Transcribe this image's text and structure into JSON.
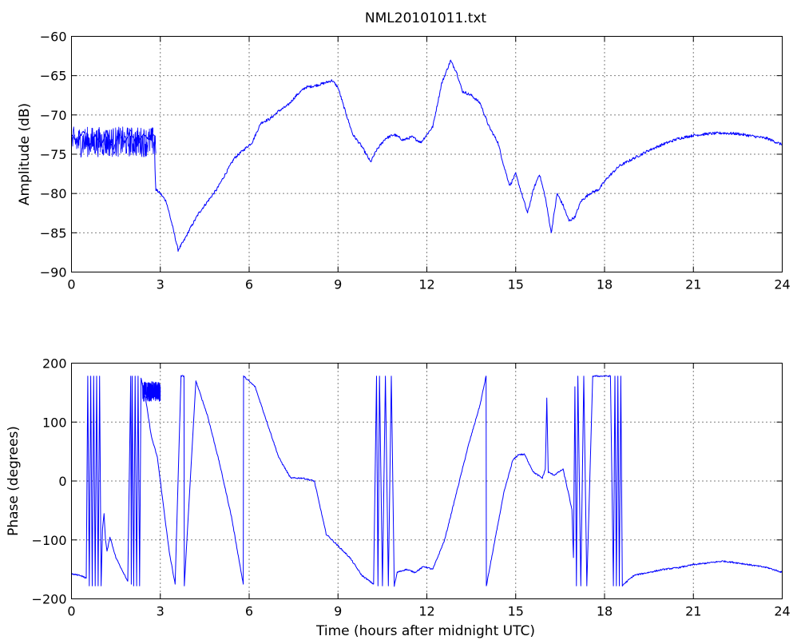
{
  "chart_data": [
    {
      "type": "line",
      "title": "NML20101011.txt",
      "xlabel": "",
      "ylabel": "Amplitude (dB)",
      "xlim": [
        0,
        24
      ],
      "ylim": [
        -90,
        -60
      ],
      "xticks": [
        0,
        3,
        6,
        9,
        12,
        15,
        18,
        21,
        24
      ],
      "yticks": [
        -60,
        -65,
        -70,
        -75,
        -80,
        -85,
        -90
      ],
      "xtick_labels": [
        "0",
        "3",
        "6",
        "9",
        "12",
        "15",
        "18",
        "21",
        "24"
      ],
      "ytick_labels": [
        "−60",
        "−65",
        "−70",
        "−75",
        "−80",
        "−85",
        "−90"
      ],
      "grid": true,
      "series_color": "#0000ff",
      "series": [
        {
          "x": [
            0,
            0.2,
            0.4,
            0.6,
            0.8,
            1.0,
            1.2,
            1.4,
            1.6,
            1.8,
            2.0,
            2.2,
            2.4,
            2.6,
            2.8,
            2.82,
            2.85,
            3.0,
            3.2,
            3.4,
            3.6,
            3.8,
            4.0,
            4.3,
            4.6,
            4.9,
            5.2,
            5.5,
            5.8,
            6.1,
            6.4,
            6.7,
            7.0,
            7.3,
            7.6,
            7.9,
            8.2,
            8.5,
            8.8,
            9.0,
            9.2,
            9.5,
            9.8,
            10.1,
            10.3,
            10.6,
            10.9,
            11.2,
            11.5,
            11.8,
            12.0,
            12.2,
            12.5,
            12.8,
            13.0,
            13.2,
            13.5,
            13.8,
            14.1,
            14.4,
            14.6,
            14.8,
            15.0,
            15.2,
            15.4,
            15.6,
            15.8,
            16.0,
            16.2,
            16.4,
            16.6,
            16.8,
            17.0,
            17.2,
            17.5,
            17.8,
            18.1,
            18.5,
            19.0,
            19.5,
            20.0,
            20.5,
            21.0,
            21.5,
            22.0,
            22.5,
            23.0,
            23.5,
            24.0
          ],
          "y": [
            -72.5,
            -73.5,
            -72,
            -74,
            -72.5,
            -73.8,
            -72,
            -74.5,
            -72.5,
            -73.5,
            -72,
            -74,
            -72.5,
            -73,
            -72.5,
            -77,
            -79.5,
            -80,
            -81,
            -84,
            -87.2,
            -86,
            -84.5,
            -82.5,
            -81,
            -79.5,
            -77.5,
            -75.5,
            -74.5,
            -73.5,
            -71,
            -70.5,
            -69.5,
            -68.8,
            -67.5,
            -66.5,
            -66.3,
            -66,
            -65.6,
            -66.5,
            -69,
            -72.5,
            -74,
            -76,
            -74.5,
            -73,
            -72.5,
            -73.2,
            -72.8,
            -73.5,
            -72.5,
            -71.5,
            -66,
            -63.1,
            -64.5,
            -67,
            -67.5,
            -68.5,
            -71.5,
            -73.5,
            -76.5,
            -79,
            -77.5,
            -80,
            -82.5,
            -79.5,
            -77.5,
            -80.5,
            -85,
            -80,
            -81.5,
            -83.5,
            -83,
            -81,
            -80,
            -79.5,
            -78,
            -76.5,
            -75.5,
            -74.5,
            -73.7,
            -73,
            -72.6,
            -72.4,
            -72.3,
            -72.4,
            -72.7,
            -73,
            -73.8
          ],
          "noise_band_x": [
            0,
            2.85
          ],
          "noise_band_y": [
            -77,
            -70.5
          ]
        }
      ]
    },
    {
      "type": "line",
      "title": "",
      "xlabel": "Time (hours after midnight UTC)",
      "ylabel": "Phase (degrees)",
      "xlim": [
        0,
        24
      ],
      "ylim": [
        -200,
        200
      ],
      "xticks": [
        0,
        3,
        6,
        9,
        12,
        15,
        18,
        21,
        24
      ],
      "yticks": [
        200,
        100,
        0,
        -100,
        -200
      ],
      "xtick_labels": [
        "0",
        "3",
        "6",
        "9",
        "12",
        "15",
        "18",
        "21",
        "24"
      ],
      "ytick_labels": [
        "200",
        "100",
        "0",
        "−100",
        "−200"
      ],
      "grid": true,
      "series_color": "#0000ff",
      "series": [
        {
          "x": [
            0,
            0.3,
            0.5,
            0.55,
            0.6,
            0.65,
            0.7,
            0.75,
            0.8,
            0.85,
            0.9,
            0.95,
            1.0,
            1.05,
            1.1,
            1.15,
            1.2,
            1.3,
            1.5,
            1.7,
            1.9,
            2.0,
            2.02,
            2.05,
            2.1,
            2.15,
            2.2,
            2.25,
            2.3,
            2.35,
            2.4,
            2.5,
            2.7,
            2.9,
            3.1,
            3.3,
            3.5,
            3.7,
            3.8,
            3.81,
            4.2,
            4.6,
            5.0,
            5.4,
            5.8,
            5.81,
            6.2,
            6.6,
            7.0,
            7.4,
            7.8,
            8.2,
            8.6,
            9.0,
            9.4,
            9.8,
            10.2,
            10.3,
            10.35,
            10.4,
            10.5,
            10.6,
            10.7,
            10.8,
            10.9,
            11.0,
            11.3,
            11.6,
            11.9,
            12.2,
            12.6,
            13.0,
            13.4,
            13.8,
            14.0,
            14.01,
            14.3,
            14.6,
            14.9,
            15.1,
            15.3,
            15.6,
            15.9,
            16.0,
            16.05,
            16.1,
            16.3,
            16.6,
            16.8,
            16.9,
            16.95,
            17.0,
            17.05,
            17.1,
            17.2,
            17.3,
            17.4,
            17.6,
            17.8,
            18.0,
            18.2,
            18.3,
            18.35,
            18.4,
            18.45,
            18.5,
            18.55,
            18.6,
            18.65,
            19.0,
            19.5,
            20.0,
            20.5,
            21.0,
            21.5,
            22.0,
            22.5,
            23.0,
            23.5,
            24.0
          ],
          "y": [
            -158,
            -160,
            -165,
            178,
            -178,
            178,
            -178,
            178,
            -178,
            178,
            -178,
            178,
            -178,
            -80,
            -55,
            -100,
            -120,
            -95,
            -130,
            -150,
            -170,
            178,
            -175,
            178,
            -178,
            178,
            -178,
            178,
            -178,
            175,
            160,
            140,
            75,
            40,
            -40,
            -120,
            -175,
            178,
            178,
            -178,
            170,
            110,
            30,
            -60,
            -175,
            178,
            160,
            100,
            40,
            5,
            5,
            0,
            -90,
            -110,
            -130,
            -160,
            -175,
            178,
            -178,
            178,
            -178,
            178,
            -178,
            178,
            -178,
            -155,
            -150,
            -155,
            -145,
            -150,
            -100,
            -20,
            60,
            130,
            178,
            -178,
            -100,
            -20,
            35,
            45,
            45,
            15,
            5,
            20,
            140,
            15,
            10,
            20,
            -25,
            -50,
            -130,
            160,
            -178,
            178,
            -178,
            178,
            -178,
            178,
            178,
            178,
            178,
            -178,
            178,
            -178,
            178,
            -178,
            178,
            -178,
            -175,
            -160,
            -155,
            -150,
            -147,
            -142,
            -139,
            -136,
            -139,
            -143,
            -147,
            -155
          ],
          "noise_band_x": [
            2.4,
            3.0
          ],
          "noise_band_y": [
            120,
            178
          ]
        }
      ]
    }
  ]
}
